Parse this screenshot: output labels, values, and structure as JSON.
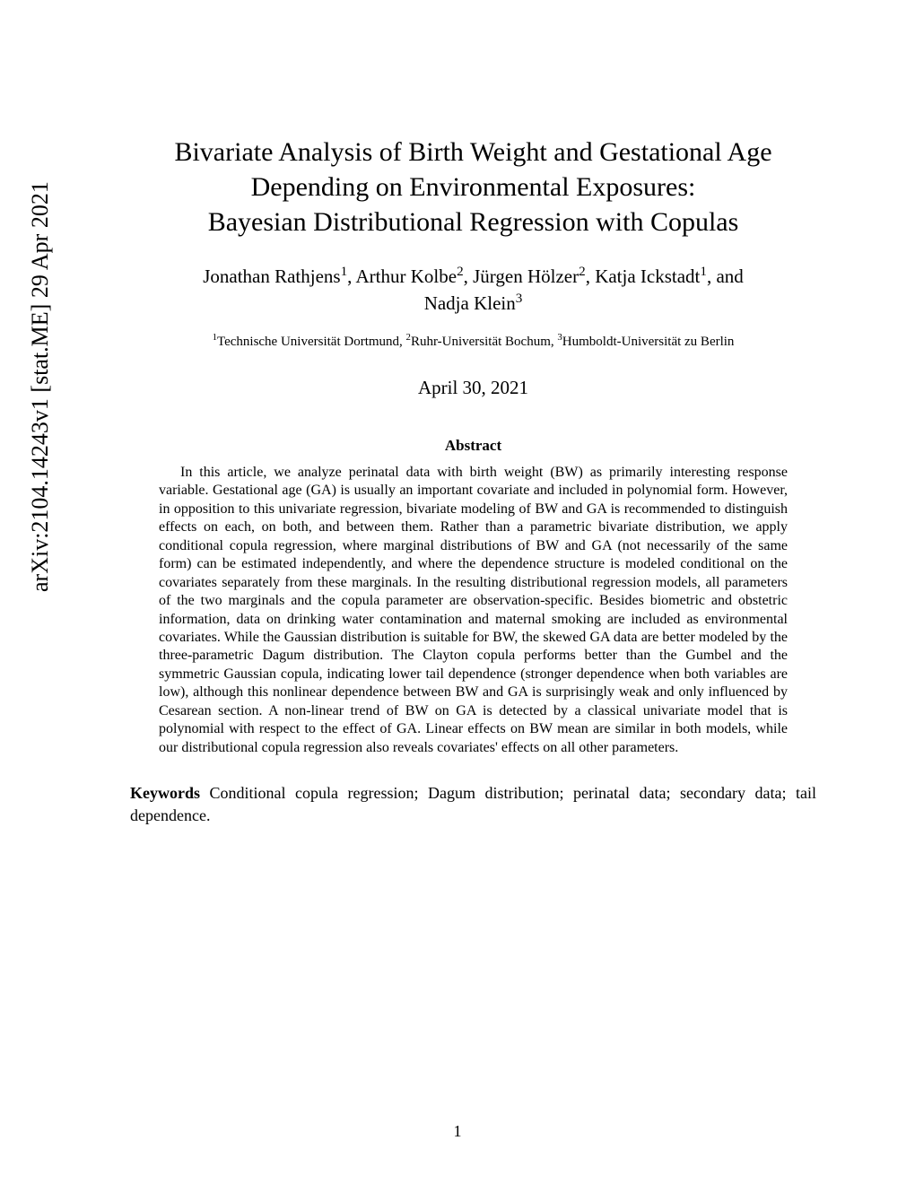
{
  "arxiv": "arXiv:2104.14243v1  [stat.ME]  29 Apr 2021",
  "title_line1": "Bivariate Analysis of Birth Weight and Gestational Age",
  "title_line2": "Depending on Environmental Exposures:",
  "title_line3": "Bayesian Distributional Regression with Copulas",
  "author1": "Jonathan Rathjens",
  "author2": "Arthur Kolbe",
  "author3": "Jürgen Hölzer",
  "author4": "Katja Ickstadt",
  "author5": "Nadja Klein",
  "aff1_sup": "1",
  "aff2_sup": "2",
  "aff3_sup": "3",
  "affiliations_text": "Technische Universität Dortmund, ",
  "affiliations_text2": "Ruhr-Universität Bochum, ",
  "affiliations_text3": "Humboldt-Universität zu Berlin",
  "date": "April 30, 2021",
  "abstract_heading": "Abstract",
  "abstract_body": "In this article, we analyze perinatal data with birth weight (BW) as primarily interesting response variable. Gestational age (GA) is usually an important covariate and included in polynomial form. However, in opposition to this univariate regression, bivariate modeling of BW and GA is recommended to distinguish effects on each, on both, and between them. Rather than a parametric bivariate distribution, we apply conditional copula regression, where marginal distributions of BW and GA (not necessarily of the same form) can be estimated independently, and where the dependence structure is modeled conditional on the covariates separately from these marginals. In the resulting distributional regression models, all parameters of the two marginals and the copula parameter are observation-specific. Besides biometric and obstetric information, data on drinking water contamination and maternal smoking are included as environmental covariates. While the Gaussian distribution is suitable for BW, the skewed GA data are better modeled by the three-parametric Dagum distribution. The Clayton copula performs better than the Gumbel and the symmetric Gaussian copula, indicating lower tail dependence (stronger dependence when both variables are low), although this nonlinear dependence between BW and GA is surprisingly weak and only influenced by Cesarean section. A non-linear trend of BW on GA is detected by a classical univariate model that is polynomial with respect to the effect of GA. Linear effects on BW mean are similar in both models, while our distributional copula regression also reveals covariates' effects on all other parameters.",
  "keywords_label": "Keywords",
  "keywords_text": "Conditional copula regression; Dagum distribution; perinatal data; secondary data; tail dependence.",
  "page_number": "1",
  "sep_comma": ", ",
  "sep_and": ", and",
  "sep_gap": "    "
}
